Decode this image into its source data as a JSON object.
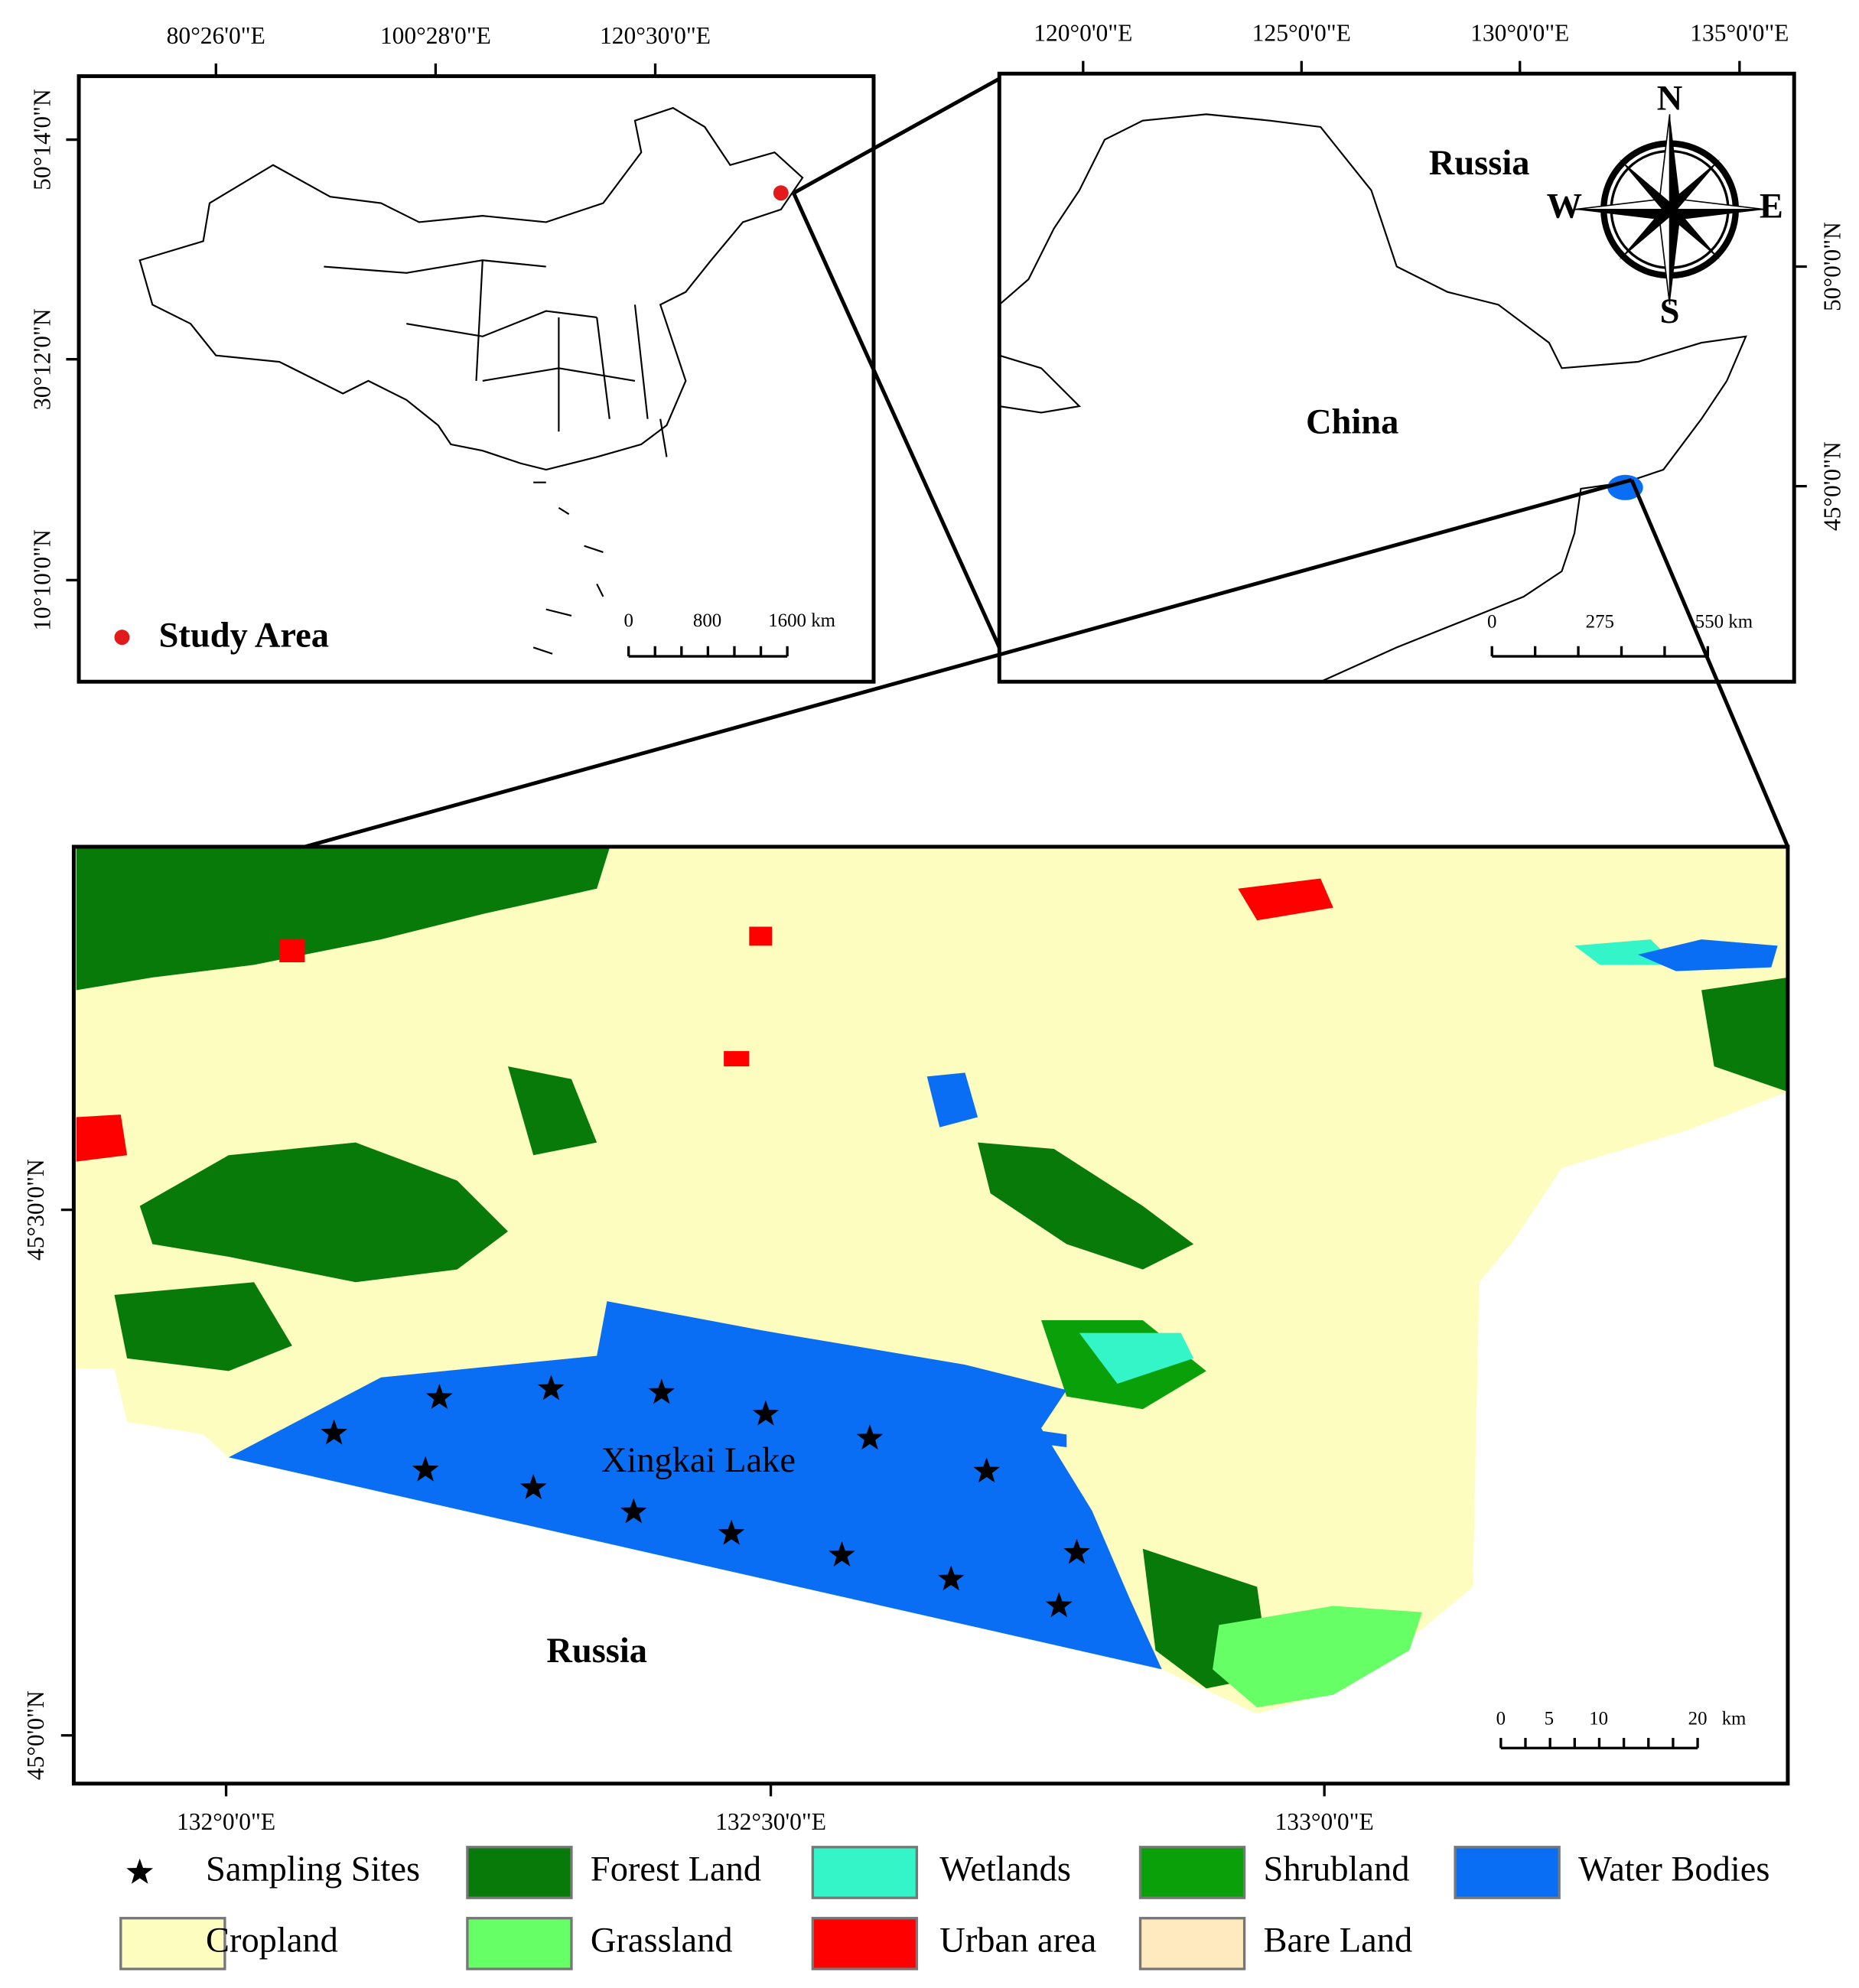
{
  "overview": {
    "x_ticks": [
      "80°26'0\"E",
      "100°28'0\"E",
      "120°30'0\"E"
    ],
    "y_ticks": [
      "50°14'0\"N",
      "30°12'0\"N",
      "10°10'0\"N"
    ],
    "legend": "Study Area",
    "scale": [
      "0",
      "800",
      "1600 km"
    ]
  },
  "inset": {
    "x_ticks": [
      "120°0'0\"E",
      "125°0'0\"E",
      "130°0'0\"E",
      "135°0'0\"E"
    ],
    "y_ticks": [
      "50°0'0\"N",
      "45°0'0\"N"
    ],
    "labels": [
      "Russia",
      "China"
    ],
    "compass": [
      "N",
      "E",
      "S",
      "W"
    ],
    "scale": [
      "0",
      "275",
      "550 km"
    ]
  },
  "main": {
    "x_ticks": [
      "132°0'0\"E",
      "132°30'0\"E",
      "133°0'0\"E"
    ],
    "y_ticks": [
      "45°30'0\"N",
      "45°0'0\"N"
    ],
    "labels": [
      "Xingkai Lake",
      "Russia"
    ],
    "scale": [
      "0",
      "5",
      "10",
      "20",
      "km"
    ]
  },
  "legend": [
    {
      "label": "Sampling Sites",
      "color": "#000000"
    },
    {
      "label": "Forest Land",
      "color": "#087a0a"
    },
    {
      "label": "Wetlands",
      "color": "#33f5c8"
    },
    {
      "label": "Shrubland",
      "color": "#0aa00a"
    },
    {
      "label": "Water Bodies",
      "color": "#0a6ef5"
    },
    {
      "label": "Cropland",
      "color": "#fdfdc0"
    },
    {
      "label": "Grassland",
      "color": "#66ff66"
    },
    {
      "label": "Urban area",
      "color": "#ff0000"
    },
    {
      "label": "Bare Land",
      "color": "#ffe9bf"
    }
  ]
}
